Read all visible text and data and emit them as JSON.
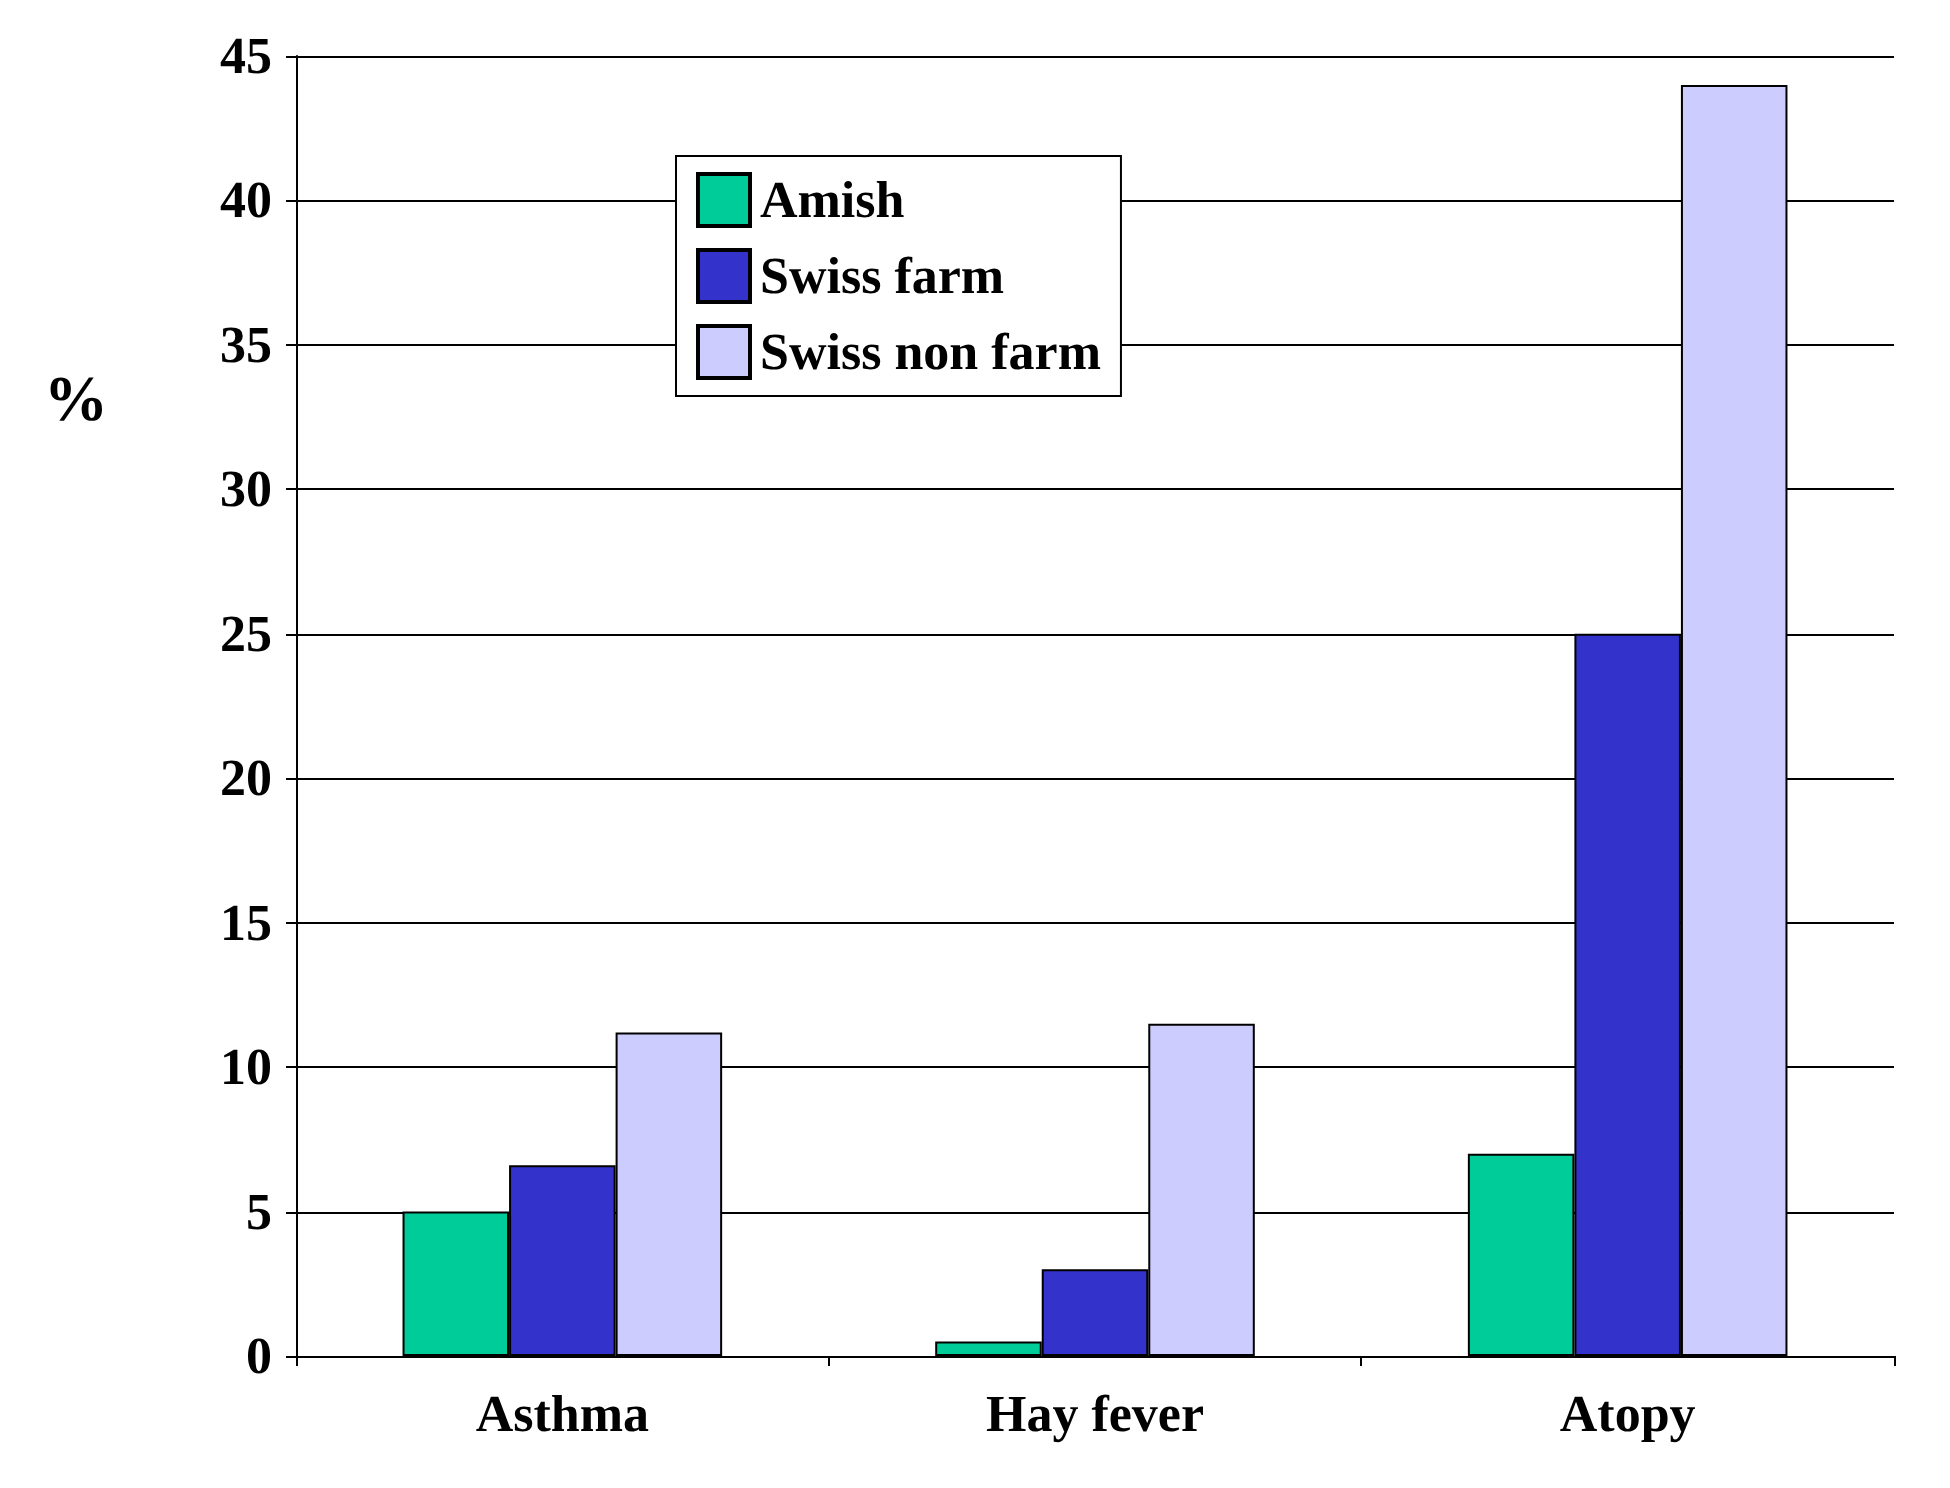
{
  "chart_data": {
    "type": "bar",
    "ylabel": "%",
    "categories": [
      "Asthma",
      "Hay fever",
      "Atopy"
    ],
    "series": [
      {
        "name": "Amish",
        "color": "#00cc99",
        "values": [
          5,
          0.5,
          7
        ]
      },
      {
        "name": "Swiss farm",
        "color": "#3333cc",
        "values": [
          6.6,
          3,
          25
        ]
      },
      {
        "name": "Swiss non farm",
        "color": "#ccccff",
        "values": [
          11.2,
          11.5,
          44
        ]
      }
    ],
    "ylim": [
      0,
      45
    ],
    "yticks": [
      0,
      5,
      10,
      15,
      20,
      25,
      30,
      35,
      40,
      45
    ],
    "grid": "y",
    "legend": "top"
  }
}
